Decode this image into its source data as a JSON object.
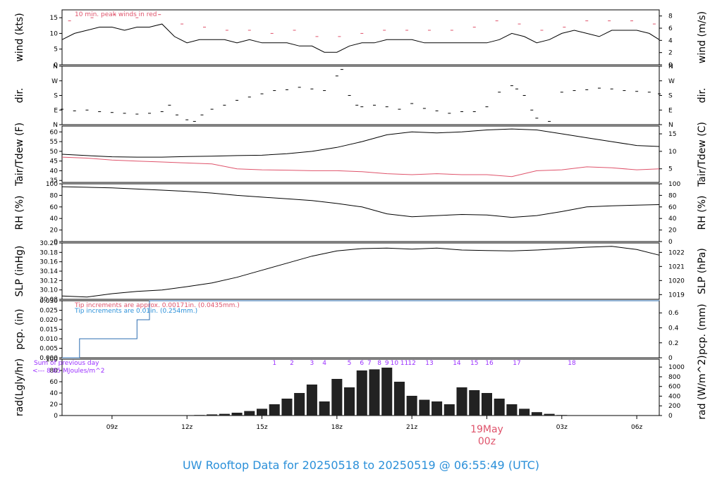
{
  "footer": "UW Rooftop Data for 20250518  to  20250519 @ 06:55:49  (UTC)",
  "colors": {
    "accent": "#2b90d9",
    "red": "#df536b",
    "purple": "#9b30ff",
    "black": "#000000"
  },
  "x_axis": {
    "tick_labels": [
      "09z",
      "12z",
      "15z",
      "18z",
      "21z",
      "00z",
      "03z",
      "06z"
    ],
    "tick_hours": [
      2.0,
      5.0,
      8.0,
      11.0,
      14.0,
      17.0,
      20.0,
      23.0
    ],
    "range_hours": [
      0.0,
      23.9
    ],
    "date_label": "19May",
    "date_sublabel": "00z"
  },
  "chart_data": [
    {
      "id": "wind",
      "type": "line",
      "ylabel": "wind (kts)",
      "ylabel_right": "wind (m/s)",
      "ylim": [
        0,
        17.5
      ],
      "yticks": [
        0,
        5,
        10,
        15
      ],
      "right_ticks": [
        "0",
        "2",
        "4",
        "6",
        "8"
      ],
      "right_tick_values_kts": [
        0,
        3.89,
        7.78,
        11.66,
        15.55
      ],
      "annotation": "10 min. peak winds in red",
      "series": [
        {
          "name": "wind",
          "color": "#000000",
          "x": [
            0,
            0.5,
            1,
            1.5,
            2,
            2.5,
            3,
            3.5,
            4,
            4.5,
            5,
            5.5,
            6,
            6.5,
            7,
            7.5,
            8,
            8.5,
            9,
            9.5,
            10,
            10.5,
            11,
            11.5,
            12,
            12.5,
            13,
            13.5,
            14,
            14.5,
            15,
            15.5,
            16,
            16.5,
            17,
            17.5,
            18,
            18.5,
            19,
            19.5,
            20,
            20.5,
            21,
            21.5,
            22,
            22.5,
            23,
            23.5,
            23.9
          ],
          "y": [
            8,
            10,
            11,
            12,
            12,
            11,
            12,
            12,
            13,
            9,
            7,
            8,
            8,
            8,
            7,
            8,
            7,
            7,
            7,
            6,
            6,
            4,
            4,
            6,
            7,
            7,
            8,
            8,
            8,
            7,
            7,
            7,
            7,
            7,
            7,
            8,
            10,
            9,
            7,
            8,
            10,
            11,
            10,
            9,
            11,
            11,
            11,
            10,
            8
          ]
        },
        {
          "name": "10 min. peak winds",
          "color": "#df536b",
          "x": [
            0.3,
            1.2,
            2.1,
            3.0,
            3.9,
            4.8,
            5.7,
            6.6,
            7.5,
            8.4,
            9.3,
            10.2,
            11.1,
            12.0,
            12.9,
            13.8,
            14.7,
            15.6,
            16.5,
            17.4,
            18.3,
            19.2,
            20.1,
            21.0,
            21.9,
            22.8,
            23.7
          ],
          "y": [
            14,
            15,
            16,
            15,
            16,
            13,
            12,
            11,
            11,
            10,
            11,
            9,
            9,
            10,
            11,
            11,
            11,
            11,
            12,
            14,
            13,
            11,
            12,
            14,
            14,
            14,
            13
          ]
        }
      ]
    },
    {
      "id": "dir",
      "type": "scatter",
      "ylabel": "dir.",
      "ylabel_right": "dir.",
      "ylim": [
        0,
        360
      ],
      "yticks": [
        0,
        90,
        180,
        270,
        360
      ],
      "ytick_labels": [
        "N",
        "E",
        "S",
        "W",
        "N"
      ],
      "series": [
        {
          "name": "direction",
          "color": "#000000",
          "x": [
            0,
            0.5,
            1,
            1.5,
            2,
            2.5,
            3,
            3.5,
            4,
            4.3,
            4.6,
            5,
            5.3,
            5.6,
            6,
            6.5,
            7,
            7.5,
            8,
            8.5,
            9,
            9.5,
            10,
            10.5,
            11,
            11.2,
            11.5,
            11.8,
            12,
            12.5,
            13,
            13.5,
            14,
            14.5,
            15,
            15.5,
            16,
            16.5,
            17,
            17.5,
            18,
            18.2,
            18.5,
            18.8,
            19,
            19.5,
            20,
            20.5,
            21,
            21.5,
            22,
            22.5,
            23,
            23.5,
            23.9
          ],
          "y": [
            95,
            85,
            90,
            80,
            75,
            70,
            65,
            70,
            80,
            120,
            60,
            30,
            20,
            60,
            95,
            120,
            150,
            170,
            190,
            210,
            215,
            230,
            220,
            210,
            300,
            340,
            180,
            120,
            110,
            120,
            110,
            95,
            130,
            100,
            85,
            70,
            80,
            80,
            110,
            200,
            240,
            220,
            180,
            90,
            40,
            20,
            200,
            210,
            215,
            225,
            220,
            210,
            205,
            200,
            190
          ]
        }
      ]
    },
    {
      "id": "temp",
      "type": "line",
      "ylabel": "Tair/Tdew (F)",
      "ylabel_right": "Tair/Tdew (C)",
      "ylim": [
        34,
        63
      ],
      "yticks": [
        35,
        40,
        45,
        50,
        55,
        60
      ],
      "right_ticks": [
        "5",
        "10",
        "15"
      ],
      "right_tick_values_f": [
        41,
        50,
        59
      ],
      "series": [
        {
          "name": "Tair",
          "color": "#000000",
          "x": [
            0,
            1,
            2,
            3,
            4,
            5,
            6,
            7,
            8,
            9,
            10,
            11,
            12,
            13,
            14,
            15,
            16,
            17,
            18,
            19,
            20,
            21,
            22,
            23,
            23.9
          ],
          "y": [
            48.5,
            47.8,
            47.2,
            47,
            47,
            47.3,
            47.5,
            47.8,
            48,
            48.8,
            50,
            52,
            55,
            58.5,
            60,
            59.5,
            60,
            61,
            61.5,
            61,
            59,
            57,
            55,
            53,
            52.5
          ]
        },
        {
          "name": "Tdew",
          "color": "#df536b",
          "x": [
            0,
            1,
            2,
            3,
            4,
            5,
            6,
            7,
            8,
            9,
            10,
            11,
            12,
            13,
            14,
            15,
            16,
            17,
            18,
            19,
            20,
            21,
            22,
            23,
            23.9
          ],
          "y": [
            47,
            46.5,
            45.5,
            45,
            44.5,
            44,
            43.5,
            41,
            40.5,
            40.3,
            40,
            40,
            39.5,
            38.5,
            38,
            38.5,
            38,
            38,
            37,
            40,
            40.5,
            42,
            41.5,
            40.5,
            41
          ]
        }
      ]
    },
    {
      "id": "rh",
      "type": "line",
      "ylabel": "RH (%)",
      "ylabel_right": "RH (%)",
      "ylim": [
        0,
        100
      ],
      "yticks": [
        0,
        20,
        40,
        60,
        80,
        100
      ],
      "right_ticks": [
        "0",
        "20",
        "40",
        "60",
        "80",
        "100"
      ],
      "series": [
        {
          "name": "RH",
          "color": "#000000",
          "x": [
            0,
            1,
            2,
            3,
            4,
            5,
            6,
            7,
            8,
            9,
            10,
            11,
            12,
            13,
            14,
            15,
            16,
            17,
            18,
            19,
            20,
            21,
            22,
            23,
            23.9
          ],
          "y": [
            95,
            94,
            93,
            91,
            89,
            87,
            84,
            80,
            77,
            74,
            71,
            66,
            60,
            48,
            43,
            45,
            47,
            46,
            42,
            45,
            52,
            60,
            62,
            63,
            64
          ]
        }
      ]
    },
    {
      "id": "slp",
      "type": "line",
      "ylabel": "SLP (inHg)",
      "ylabel_right": "SLP (hPa)",
      "ylim": [
        30.08,
        30.2
      ],
      "yticks": [
        30.08,
        30.1,
        30.12,
        30.14,
        30.16,
        30.18,
        30.2
      ],
      "ytick_labels": [
        "30.08",
        "30.10",
        "30.12",
        "30.14",
        "30.16",
        "30.18",
        "30.20"
      ],
      "right_ticks": [
        "1019",
        "1020",
        "1021",
        "1022"
      ],
      "right_tick_values_inhg": [
        30.09,
        30.12,
        30.15,
        30.18
      ],
      "series": [
        {
          "name": "SLP",
          "color": "#000000",
          "x": [
            0,
            1,
            2,
            3,
            4,
            5,
            6,
            7,
            8,
            9,
            10,
            11,
            12,
            13,
            14,
            15,
            16,
            17,
            18,
            19,
            20,
            21,
            22,
            23,
            23.9
          ],
          "y": [
            30.087,
            30.085,
            30.092,
            30.097,
            30.1,
            30.107,
            30.115,
            30.127,
            30.142,
            30.157,
            30.172,
            30.183,
            30.188,
            30.189,
            30.187,
            30.189,
            30.185,
            30.184,
            30.183,
            30.185,
            30.188,
            30.191,
            30.193,
            30.186,
            30.174
          ]
        }
      ]
    },
    {
      "id": "pcp",
      "type": "line",
      "ylabel": "pcp. (in)",
      "ylabel_right": "pcp. (mm)",
      "ylim": [
        0,
        0.03
      ],
      "yticks": [
        0,
        0.005,
        0.01,
        0.015,
        0.02,
        0.025,
        0.03
      ],
      "ytick_labels": [
        "0.000",
        "0.005",
        "0.010",
        "0.015",
        "0.020",
        "0.025",
        "0.030"
      ],
      "right_ticks": [
        "0",
        "0.2",
        "0.4",
        "0.6"
      ],
      "right_tick_values_in": [
        0,
        0.00787,
        0.01575,
        0.02362
      ],
      "notes": [
        "Tip increments are approx. 0.00171in. (0.0435mm.)",
        "Tip increments are 0.01in. (0.254mm.)"
      ],
      "series": [
        {
          "name": "pcp",
          "color": "#2b6cb0",
          "x": [
            0,
            0.7,
            0.7,
            3.0,
            3.0,
            3.5,
            3.5,
            23.9
          ],
          "y": [
            0,
            0,
            0.01,
            0.01,
            0.02,
            0.02,
            0.03,
            0.03
          ]
        }
      ]
    },
    {
      "id": "rad",
      "type": "bar",
      "ylabel": "rad(Lgly/hr)",
      "ylabel_right": "rad (W/m^2)",
      "ylim": [
        0,
        100
      ],
      "yticks": [
        0,
        20,
        40,
        60,
        80,
        100
      ],
      "right_ticks": [
        "0",
        "200",
        "400",
        "600",
        "800",
        "1000"
      ],
      "right_tick_values_lgly": [
        0,
        17.2,
        34.4,
        51.6,
        68.8,
        86.0
      ],
      "notes": [
        "Sum of previous day",
        "<--- 8.85 MJoules/m^2"
      ],
      "hour_labels": [
        "1",
        "2",
        "3",
        "4",
        "5",
        "6",
        "7",
        "8",
        "9",
        "10",
        "11",
        "12",
        "13",
        "14",
        "15",
        "16",
        "17",
        "18"
      ],
      "hour_label_x": [
        8.5,
        9.2,
        10.0,
        10.5,
        11.5,
        12.0,
        12.3,
        12.7,
        13.0,
        13.3,
        13.7,
        14.0,
        14.7,
        15.8,
        16.5,
        17.1,
        18.2,
        20.4
      ],
      "series": [
        {
          "name": "rad",
          "color": "#222222",
          "x": [
            5.0,
            5.5,
            6.0,
            6.5,
            7.0,
            7.5,
            8.0,
            8.5,
            9.0,
            9.5,
            10.0,
            10.5,
            11.0,
            11.5,
            12.0,
            12.5,
            13.0,
            13.5,
            14.0,
            14.5,
            15.0,
            15.5,
            16.0,
            16.5,
            17.0,
            17.5,
            18.0,
            18.5,
            19.0,
            19.5,
            20.0,
            20.5,
            21.0
          ],
          "y": [
            0,
            1,
            2,
            3,
            5,
            8,
            12,
            20,
            30,
            40,
            55,
            25,
            65,
            50,
            80,
            82,
            85,
            60,
            35,
            28,
            25,
            20,
            50,
            45,
            40,
            30,
            20,
            12,
            6,
            3,
            1,
            0,
            0
          ]
        }
      ]
    }
  ]
}
